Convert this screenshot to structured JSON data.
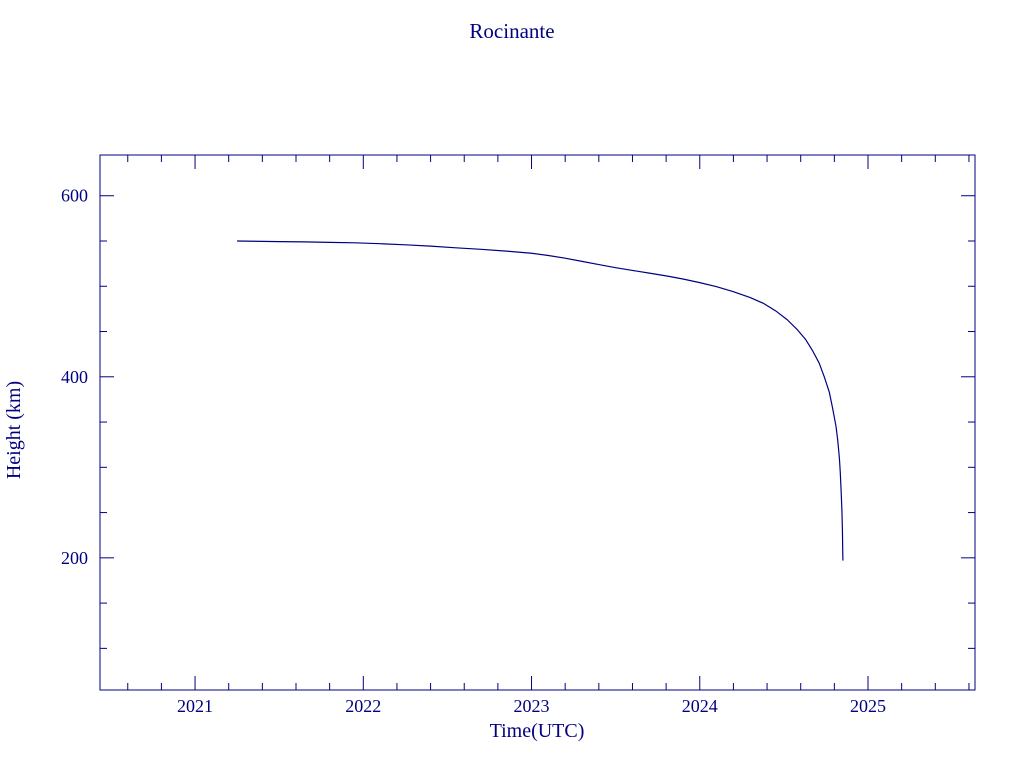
{
  "accent_color": "#000080",
  "background_color": "#ffffff",
  "chart_data": {
    "type": "line",
    "title": "Rocinante",
    "xlabel": "Time(UTC)",
    "ylabel": "Height (km)",
    "xlim": [
      2020.435,
      2025.636
    ],
    "ylim": [
      54,
      645
    ],
    "grid": false,
    "legend": "none",
    "x_major_ticks": [
      2021,
      2022,
      2023,
      2024,
      2025
    ],
    "x_tick_labels": [
      "2021",
      "2022",
      "2023",
      "2024",
      "2025"
    ],
    "x_minor_step": 0.2,
    "y_major_ticks": [
      200,
      400,
      600
    ],
    "y_tick_labels": [
      "200",
      "400",
      "600"
    ],
    "y_minor_step": 50,
    "line_color": "#000080",
    "series": [
      {
        "name": "height_km",
        "points": [
          [
            2021.25,
            550
          ],
          [
            2021.35,
            549.7
          ],
          [
            2021.5,
            549.3
          ],
          [
            2021.65,
            549.0
          ],
          [
            2021.8,
            548.5
          ],
          [
            2021.95,
            548.0
          ],
          [
            2022.1,
            547.0
          ],
          [
            2022.25,
            545.8
          ],
          [
            2022.4,
            544.3
          ],
          [
            2022.55,
            542.5
          ],
          [
            2022.7,
            540.8
          ],
          [
            2022.85,
            538.8
          ],
          [
            2023.0,
            536.5
          ],
          [
            2023.1,
            534.0
          ],
          [
            2023.2,
            531.0
          ],
          [
            2023.3,
            527.5
          ],
          [
            2023.4,
            524.0
          ],
          [
            2023.5,
            520.5
          ],
          [
            2023.6,
            517.5
          ],
          [
            2023.7,
            514.5
          ],
          [
            2023.8,
            511.5
          ],
          [
            2023.9,
            508.0
          ],
          [
            2024.0,
            504.0
          ],
          [
            2024.1,
            499.5
          ],
          [
            2024.2,
            494.0
          ],
          [
            2024.3,
            487.5
          ],
          [
            2024.38,
            481.0
          ],
          [
            2024.45,
            473.0
          ],
          [
            2024.52,
            463.0
          ],
          [
            2024.58,
            452.0
          ],
          [
            2024.63,
            441.0
          ],
          [
            2024.67,
            429.0
          ],
          [
            2024.71,
            415.0
          ],
          [
            2024.74,
            400.0
          ],
          [
            2024.77,
            383.0
          ],
          [
            2024.79,
            365.0
          ],
          [
            2024.81,
            345.0
          ],
          [
            2024.82,
            330.0
          ],
          [
            2024.83,
            310.0
          ],
          [
            2024.835,
            295.0
          ],
          [
            2024.84,
            275.0
          ],
          [
            2024.845,
            252.0
          ],
          [
            2024.848,
            230.0
          ],
          [
            2024.85,
            205.0
          ],
          [
            2024.851,
            197.0
          ]
        ]
      }
    ]
  }
}
